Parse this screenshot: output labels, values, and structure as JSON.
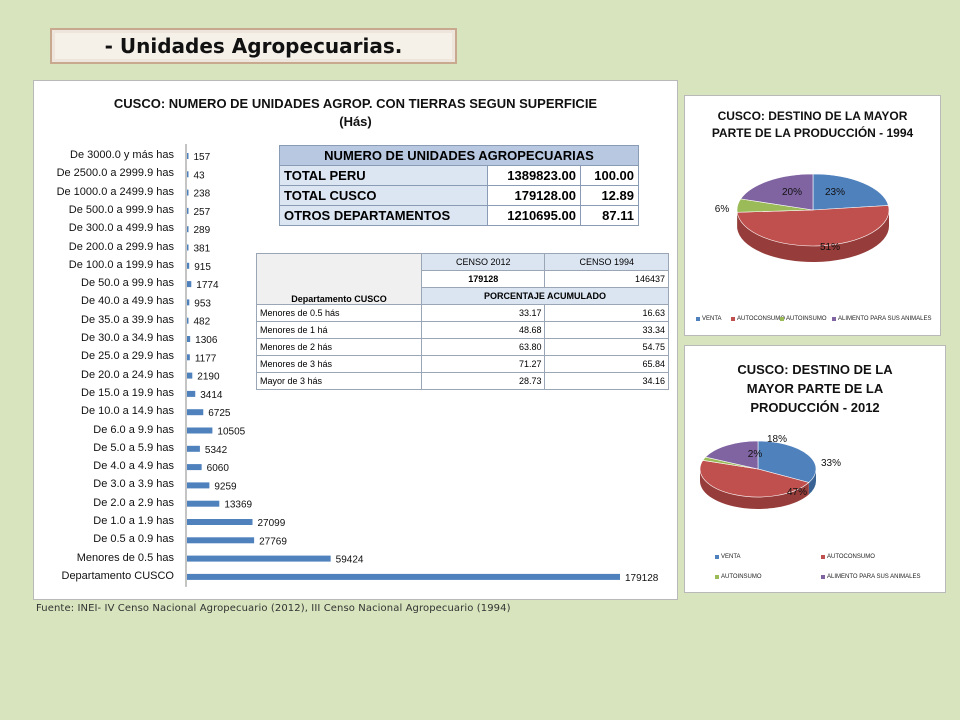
{
  "header": {
    "title": "-   Unidades Agropecuarias."
  },
  "footer": {
    "source": "Fuente: INEI- IV Censo Nacional Agropecuario (2012), III Censo Nacional Agropecuario (1994)"
  },
  "table_peru": {
    "header": "NUMERO DE UNIDADES AGROPECUARIAS",
    "rows": [
      {
        "label": "TOTAL PERU",
        "units": "1389823.00",
        "pct": "100.00"
      },
      {
        "label": "TOTAL CUSCO",
        "units": "179128.00",
        "pct": "12.89"
      },
      {
        "label": "OTROS DEPARTAMENTOS",
        "units": "1210695.00",
        "pct": "87.11"
      }
    ]
  },
  "table_censo": {
    "col_2012": "CENSO 2012",
    "col_1994": "CENSO 1994",
    "total_2012": "179128",
    "total_1994": "146437",
    "dept_label": "Departamento CUSCO",
    "pct_label": "PORCENTAJE ACUMULADO",
    "rows": [
      {
        "label": "Menores de 0.5 hás",
        "v2012": "33.17",
        "v1994": "16.63"
      },
      {
        "label": "Menores de 1 há",
        "v2012": "48.68",
        "v1994": "33.34"
      },
      {
        "label": "Menores de 2 hás",
        "v2012": "63.80",
        "v1994": "54.75"
      },
      {
        "label": "Menores de 3 hás",
        "v2012": "71.27",
        "v1994": "65.84"
      },
      {
        "label": "Mayor de 3 hás",
        "v2012": "28.73",
        "v1994": "34.16"
      }
    ]
  },
  "colors": {
    "bar": "#4f81bd",
    "venta": "#4f81bd",
    "autoconsumo": "#c0504d",
    "autoinsumo": "#9bbb59",
    "alimento": "#8064a2"
  },
  "chart_data": [
    {
      "type": "bar",
      "orientation": "horizontal",
      "title": "CUSCO: NUMERO DE UNIDADES AGROP. CON TIERRAS  SEGUN SUPERFICIE",
      "subtitle": "(Hás)",
      "categories": [
        "De 3000.0 y más has",
        "De 2500.0 a 2999.9 has",
        "De 1000.0 a 2499.9 has",
        "De 500.0 a 999.9 has",
        "De 300.0 a 499.9 has",
        "De 200.0 a 299.9 has",
        "De 100.0 a 199.9 has",
        "De 50.0 a 99.9 has",
        "De 40.0 a 49.9 has",
        "De 35.0 a 39.9 has",
        "De 30.0 a 34.9 has",
        "De 25.0 a 29.9 has",
        "De 20.0 a 24.9 has",
        "De 15.0 a 19.9 has",
        "De 10.0 a 14.9 has",
        "De 6.0 a 9.9 has",
        "De 5.0 a 5.9 has",
        "De 4.0 a 4.9 has",
        "De 3.0 a 3.9 has",
        "De 2.0 a 2.9 has",
        "De 1.0 a 1.9 has",
        "De 0.5 a 0.9 has",
        "Menores de 0.5 has",
        "Departamento CUSCO"
      ],
      "values": [
        157,
        43,
        238,
        257,
        289,
        381,
        915,
        1774,
        953,
        482,
        1306,
        1177,
        2190,
        3414,
        6725,
        10505,
        5342,
        6060,
        9259,
        13369,
        27099,
        27769,
        59424,
        179128
      ]
    },
    {
      "type": "pie",
      "title": "CUSCO: DESTINO DE LA MAYOR PARTE DE LA PRODUCCIÓN - 1994",
      "labels": [
        "VENTA",
        "AUTOCONSUMO",
        "AUTOINSUMO",
        "ALIMENTO PARA SUS ANIMALES"
      ],
      "values": [
        23,
        51,
        6,
        20
      ],
      "value_labels": [
        "23%",
        "51%",
        "6%",
        "20%"
      ]
    },
    {
      "type": "pie",
      "title": "CUSCO: DESTINO DE LA MAYOR PARTE DE LA PRODUCCIÓN - 2012",
      "labels": [
        "VENTA",
        "AUTOCONSUMO",
        "AUTOINSUMO",
        "ALIMENTO PARA SUS ANIMALES"
      ],
      "values": [
        33,
        47,
        2,
        18
      ],
      "value_labels": [
        "33%",
        "47%",
        "2%",
        "18%"
      ]
    }
  ]
}
